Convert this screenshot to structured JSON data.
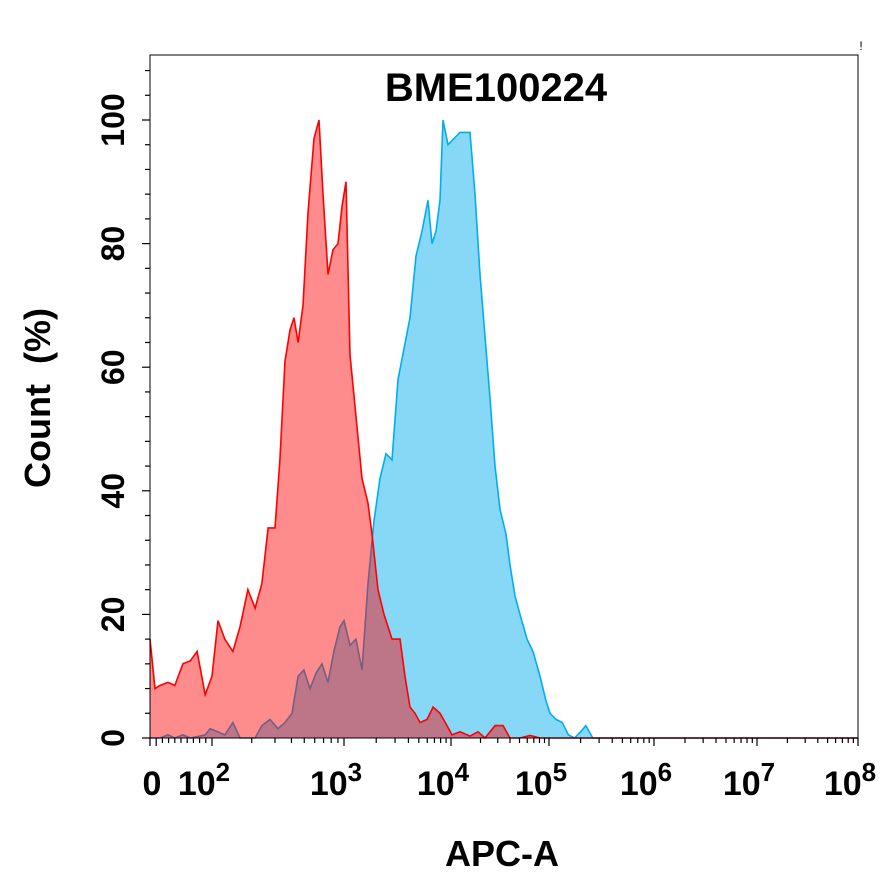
{
  "chart_data": {
    "type": "area",
    "title": "BME100224",
    "corner_mark": "!",
    "xlabel": "APC-A",
    "ylabel": "Count  (%)",
    "x_scale": "biexponential",
    "xlim": [
      0,
      100000000
    ],
    "ylim": [
      0,
      110
    ],
    "grid": false,
    "legend": "none",
    "x_ticks": [
      {
        "value": 0,
        "base": "0",
        "exp": ""
      },
      {
        "value": 100,
        "base": "10",
        "exp": "2"
      },
      {
        "value": 1000,
        "base": "10",
        "exp": "3"
      },
      {
        "value": 10000,
        "base": "10",
        "exp": "4"
      },
      {
        "value": 100000,
        "base": "10",
        "exp": "5"
      },
      {
        "value": 1000000,
        "base": "10",
        "exp": "6"
      },
      {
        "value": 10000000,
        "base": "10",
        "exp": "7"
      },
      {
        "value": 100000000,
        "base": "10",
        "exp": "8"
      }
    ],
    "y_ticks": [
      0,
      20,
      40,
      60,
      80,
      100
    ],
    "y_tick_labels": [
      "0",
      "20",
      "40",
      "60",
      "80",
      "100"
    ],
    "series": [
      {
        "color": "#00aeef",
        "fill": "#87d8f7",
        "x": [
          0,
          16,
          29,
          40,
          53,
          65,
          89,
          97,
          111,
          125,
          144,
          163,
          212,
          239,
          275,
          316,
          357,
          404,
          449,
          497,
          553,
          614,
          681,
          757,
          839,
          933,
          1000,
          1138,
          1295,
          1473,
          1675,
          1905,
          2168,
          2469,
          2809,
          3198,
          3636,
          4137,
          4708,
          5358,
          6095,
          6637,
          7244,
          7889,
          8414,
          9376,
          10730,
          12350,
          13900,
          15620,
          17580,
          19770,
          22230,
          25000,
          28110,
          31620,
          36390,
          40000,
          44970,
          50580,
          59700,
          68700,
          80900,
          93100,
          102300,
          116900,
          133700,
          152900,
          175000,
          200000,
          223900,
          261400,
          100000000
        ],
        "y": [
          0,
          0,
          0.5,
          0,
          0.5,
          0,
          0.5,
          1.5,
          1,
          0.5,
          2.5,
          0,
          0,
          2,
          3,
          1.5,
          2.5,
          4,
          10,
          11,
          8,
          10.5,
          12,
          9,
          14,
          18,
          19,
          15,
          16,
          11,
          25,
          35,
          42,
          46,
          45,
          58,
          63,
          68,
          78,
          82,
          87,
          80,
          82,
          87,
          100,
          96,
          97,
          98,
          98,
          98,
          88,
          75,
          65,
          55,
          44,
          37,
          33,
          28,
          23,
          20,
          16,
          14,
          10,
          6,
          4,
          3,
          2.5,
          0.5,
          0,
          1,
          2,
          0,
          0
        ]
      },
      {
        "color": "#ff0000",
        "fill": "#ff0000",
        "x": [
          0,
          8,
          16,
          29,
          40,
          53,
          65,
          76,
          89,
          100,
          111,
          125,
          144,
          163,
          187,
          212,
          239,
          266,
          300,
          327,
          357,
          390,
          418,
          449,
          489,
          534,
          593,
          647,
          693,
          757,
          826,
          901,
          966,
          1044,
          1138,
          1295,
          1473,
          1675,
          1827,
          2078,
          2364,
          2809,
          3337,
          3715,
          4137,
          4607,
          5129,
          5970,
          6797,
          7889,
          9180,
          10238,
          12350,
          15620,
          18870,
          22230,
          28110,
          33950,
          40000,
          50580,
          64000,
          80900,
          100000000
        ],
        "y": [
          16,
          8,
          8.5,
          9,
          8.5,
          12,
          12.5,
          14,
          7,
          10,
          19,
          16,
          14,
          18,
          24,
          21,
          25,
          34,
          34,
          45,
          61,
          66,
          68,
          64,
          70,
          85,
          97,
          100,
          88,
          75,
          79,
          80,
          86,
          90,
          62,
          52,
          42,
          38,
          33,
          24,
          20,
          16,
          16,
          10,
          5,
          4,
          2.5,
          3,
          5,
          4,
          2,
          0.5,
          1,
          0.3,
          1,
          0,
          2,
          2,
          0,
          0,
          0.4,
          0,
          0
        ]
      }
    ]
  }
}
